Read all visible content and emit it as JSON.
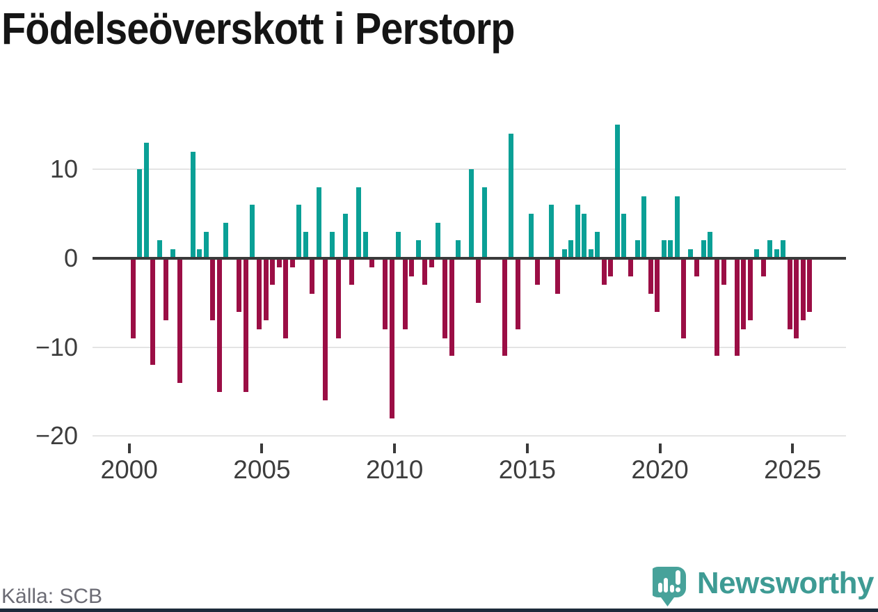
{
  "title": "Födelseöverskott i Perstorp",
  "source_label": "Källa: SCB",
  "brand": {
    "name": "Newsworthy",
    "logo_color": "#47a29a",
    "wordmark_color": "#3e9b94"
  },
  "colors": {
    "positive": "#0aa096",
    "negative": "#9b0e45",
    "zero_line": "#3a3a3a",
    "gridline": "#e4e4e4",
    "axis_text": "#3d3d3d",
    "footer_strip": "#1c2a3a"
  },
  "chart_data": {
    "type": "bar",
    "title": "Födelseöverskott i Perstorp",
    "frequency": "quarterly",
    "x_start": "2000-Q1",
    "x_end": "2025-Q3",
    "grid": true,
    "legend": false,
    "ylim": [
      -20,
      16
    ],
    "y_ticks": [
      10,
      0,
      -10,
      -20
    ],
    "y_tick_labels": [
      "10",
      "0",
      "−10",
      "−20"
    ],
    "x_tick_years": [
      2000,
      2005,
      2010,
      2015,
      2020,
      2025
    ],
    "x_tick_labels": [
      "2000",
      "2005",
      "2010",
      "2015",
      "2020",
      "2025"
    ],
    "series": [
      {
        "name": "Födelseöverskott",
        "values": [
          -9,
          10,
          13,
          -12,
          2,
          -7,
          1,
          -14,
          0,
          12,
          1,
          3,
          -7,
          -15,
          4,
          0,
          -6,
          -15,
          6,
          -8,
          -7,
          -3,
          -1,
          -9,
          -1,
          6,
          3,
          -4,
          8,
          -16,
          3,
          -9,
          5,
          -3,
          8,
          3,
          -1,
          0,
          -8,
          -18,
          3,
          -8,
          -2,
          2,
          -3,
          -1,
          4,
          -9,
          -11,
          2,
          0,
          10,
          -5,
          8,
          0,
          0,
          -11,
          14,
          -8,
          0,
          5,
          -3,
          0,
          6,
          -4,
          1,
          2,
          6,
          5,
          1,
          3,
          -3,
          -2,
          15,
          5,
          -2,
          2,
          7,
          -4,
          -6,
          2,
          2,
          7,
          -9,
          1,
          -2,
          2,
          3,
          -11,
          -3,
          0,
          -11,
          -8,
          -7,
          1,
          -2,
          2,
          1,
          2,
          -8,
          -9,
          -7,
          -6
        ]
      }
    ]
  }
}
